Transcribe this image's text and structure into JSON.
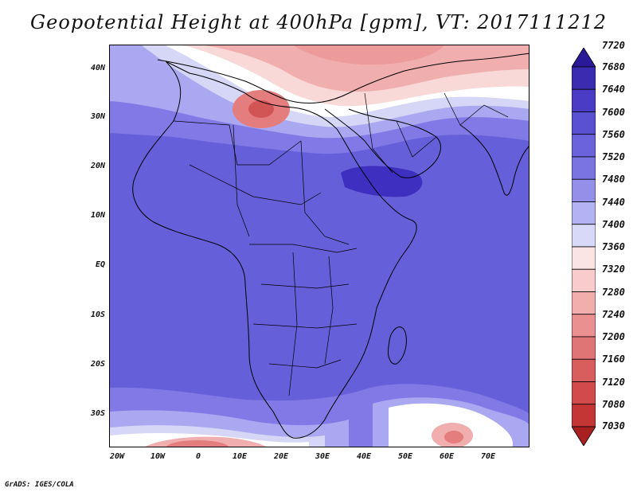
{
  "title": "Geopotential Height at 400hPa [gpm], VT: 2017111212",
  "credit": "GrADS: IGES/COLA",
  "latitude_labels": [
    "40N",
    "30N",
    "20N",
    "10N",
    "EQ",
    "10S",
    "20S",
    "30S"
  ],
  "longitude_labels": [
    "20W",
    "10W",
    "0",
    "10E",
    "20E",
    "30E",
    "40E",
    "50E",
    "60E",
    "70E"
  ],
  "colorbar": {
    "levels": [
      "7720",
      "7680",
      "7640",
      "7600",
      "7560",
      "7520",
      "7480",
      "7440",
      "7400",
      "7360",
      "7320",
      "7280",
      "7240",
      "7200",
      "7160",
      "7120",
      "7080",
      "7030"
    ],
    "colors": [
      "#2a1a99",
      "#3a2bb0",
      "#4a3cc4",
      "#5a50d2",
      "#6b63dc",
      "#7a74e2",
      "#9490ea",
      "#b4b3f2",
      "#d8d8f8",
      "#fbe4e4",
      "#f8cccc",
      "#f2adad",
      "#ea9090",
      "#e07575",
      "#d85e5e",
      "#d24a4a",
      "#c43636",
      "#a82020"
    ]
  },
  "field_colors": {
    "deep": "#3d2fbf",
    "base": "#6560da",
    "mid": "#8079e6",
    "light": "#aaa8f0",
    "pale": "#d6d6f7",
    "white": "#ffffff",
    "pink_light": "#f9d8d8",
    "pink": "#f1aeae",
    "red": "#e47d7d",
    "dark_red": "#d25555"
  }
}
